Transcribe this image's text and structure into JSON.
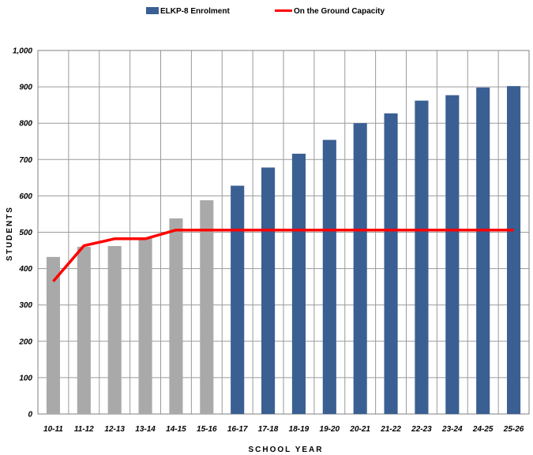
{
  "chart_data": {
    "type": "bar",
    "categories": [
      "10-11",
      "11-12",
      "12-13",
      "13-14",
      "14-15",
      "15-16",
      "16-17",
      "17-18",
      "18-19",
      "19-20",
      "20-21",
      "21-22",
      "22-23",
      "23-24",
      "24-25",
      "25-26"
    ],
    "series": [
      {
        "name": "ELKP-8 Enrolment",
        "type": "bar",
        "values": [
          432,
          460,
          462,
          485,
          538,
          588,
          628,
          678,
          716,
          754,
          800,
          827,
          862,
          877,
          898,
          902
        ],
        "color": "#3a5f93",
        "historical_color": "#a9a9a9",
        "historical_count": 6
      },
      {
        "name": "On the Ground Capacity",
        "type": "line",
        "values": [
          365,
          463,
          482,
          482,
          506,
          506,
          506,
          506,
          506,
          506,
          506,
          506,
          506,
          506,
          506,
          506
        ],
        "color": "#ff0000"
      }
    ],
    "xlabel": "SCHOOL YEAR",
    "ylabel": "STUDENTS",
    "ylim": [
      0,
      1000
    ],
    "yticks": [
      0,
      100,
      200,
      300,
      400,
      500,
      600,
      700,
      800,
      900,
      1000
    ],
    "ytick_labels": [
      "0",
      "100",
      "200",
      "300",
      "400",
      "500",
      "600",
      "700",
      "800",
      "900",
      "1,000"
    ],
    "grid": true,
    "legend_position": "top-center"
  }
}
